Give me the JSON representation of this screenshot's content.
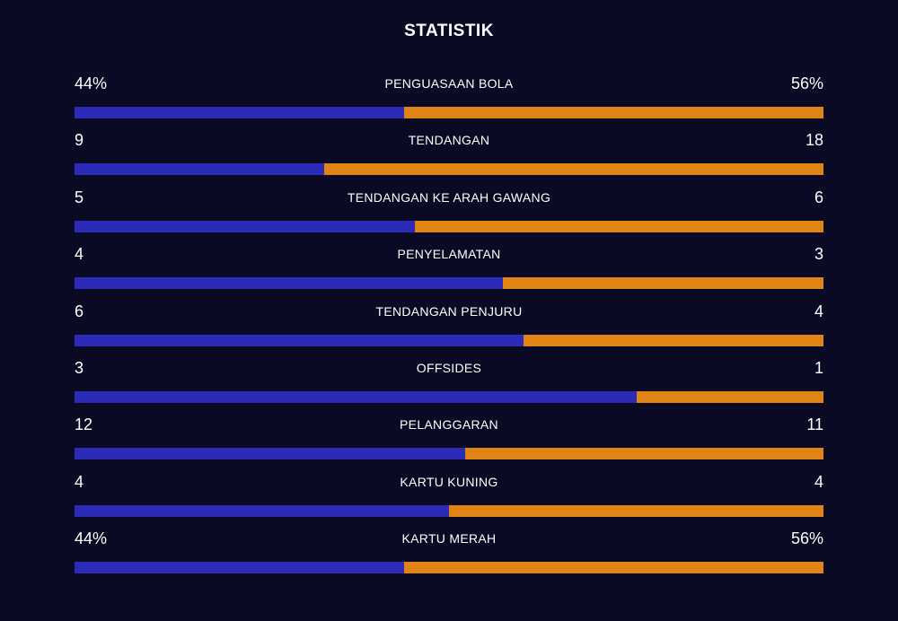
{
  "title": "STATISTIK",
  "colors": {
    "background": "#0b0a24",
    "home": "#2b2bb8",
    "away": "#df8415",
    "text": "#ffffff"
  },
  "stats": [
    {
      "label": "PENGUASAAN BOLA",
      "left": "44%",
      "right": "56%",
      "left_share": 0.44
    },
    {
      "label": "TENDANGAN",
      "left": "9",
      "right": "18",
      "left_share": 0.333
    },
    {
      "label": "TENDANGAN KE ARAH GAWANG",
      "left": "5",
      "right": "6",
      "left_share": 0.4545
    },
    {
      "label": "PENYELAMATAN",
      "left": "4",
      "right": "3",
      "left_share": 0.5714
    },
    {
      "label": "TENDANGAN PENJURU",
      "left": "6",
      "right": "4",
      "left_share": 0.6
    },
    {
      "label": "OFFSIDES",
      "left": "3",
      "right": "1",
      "left_share": 0.75
    },
    {
      "label": "PELANGGARAN",
      "left": "12",
      "right": "11",
      "left_share": 0.5217
    },
    {
      "label": "KARTU KUNING",
      "left": "4",
      "right": "4",
      "left_share": 0.5
    },
    {
      "label": "KARTU MERAH",
      "left": "44%",
      "right": "56%",
      "left_share": 0.44
    }
  ]
}
